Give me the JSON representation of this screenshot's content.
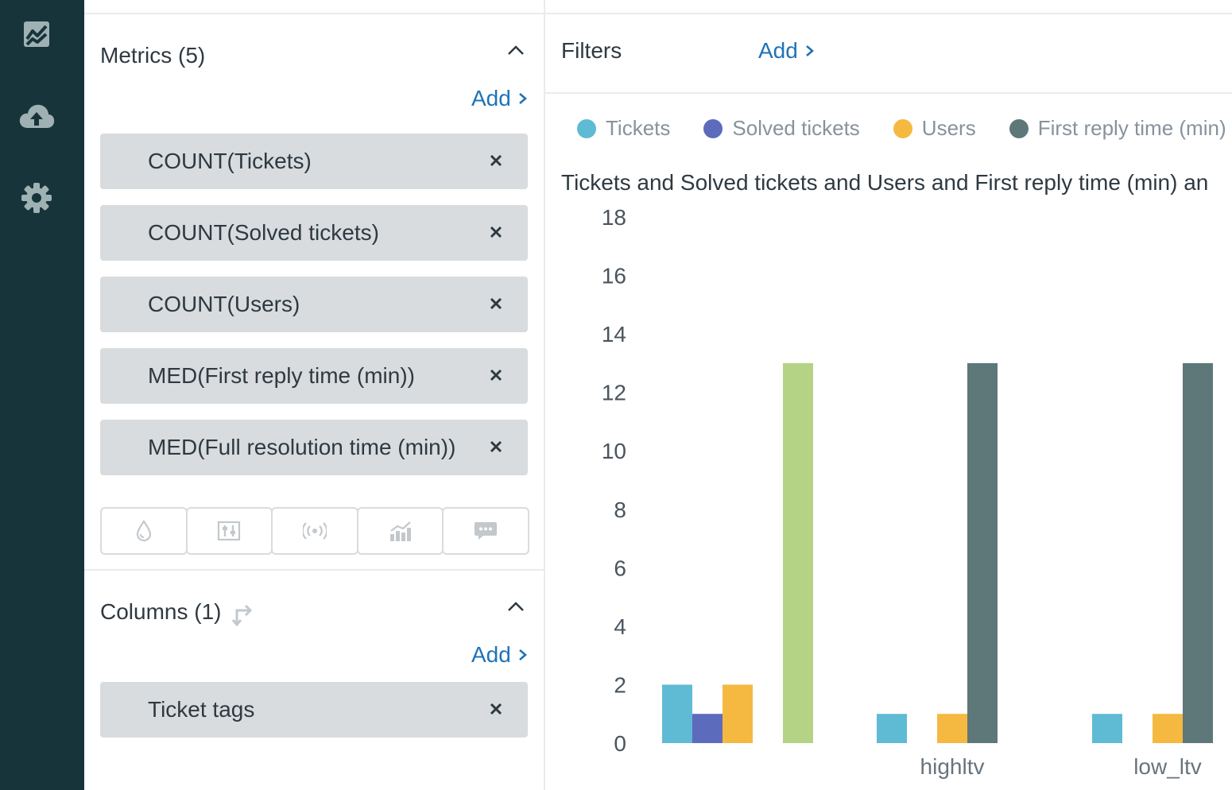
{
  "nav": {
    "items": [
      {
        "icon": "chart-icon"
      },
      {
        "icon": "cloud-upload-icon"
      },
      {
        "icon": "gear-icon"
      }
    ]
  },
  "metrics": {
    "title": "Metrics (5)",
    "add_label": "Add",
    "items": [
      "COUNT(Tickets)",
      "COUNT(Solved tickets)",
      "COUNT(Users)",
      "MED(First reply time (min))",
      "MED(Full resolution time (min))"
    ]
  },
  "toolbar": {
    "icons": [
      "drop-icon",
      "sliders-icon",
      "broadcast-icon",
      "bar-trend-icon",
      "chat-bubble-icon"
    ]
  },
  "columns": {
    "title": "Columns (1)",
    "add_label": "Add",
    "items": [
      "Ticket tags"
    ]
  },
  "filters": {
    "title": "Filters",
    "add_label": "Add"
  },
  "colors": {
    "nav_bg": "#17343b",
    "link": "#1f73b7",
    "pill_bg": "#d8dcde"
  },
  "chart_data": {
    "type": "bar",
    "title": "Tickets and Solved tickets and Users and First reply time (min) an",
    "categories": [
      "",
      "highltv",
      "low_ltv"
    ],
    "legend": [
      "Tickets",
      "Solved tickets",
      "Users",
      "First reply time (min)"
    ],
    "series": [
      {
        "name": "Tickets",
        "color": "#5ebbd3",
        "values": [
          2,
          1,
          1
        ]
      },
      {
        "name": "Solved tickets",
        "color": "#5d6bbd",
        "values": [
          1,
          0,
          0
        ]
      },
      {
        "name": "Users",
        "color": "#f5b941",
        "values": [
          2,
          1,
          1
        ]
      },
      {
        "name": "First reply time (min)",
        "color": "#5e7779",
        "values": [
          0,
          13,
          13
        ]
      },
      {
        "color": "#b4d384",
        "values": [
          13,
          0,
          0
        ]
      }
    ],
    "yticks": [
      0,
      2,
      4,
      6,
      8,
      10,
      12,
      14,
      16,
      18
    ],
    "ylim": [
      0,
      18
    ]
  }
}
